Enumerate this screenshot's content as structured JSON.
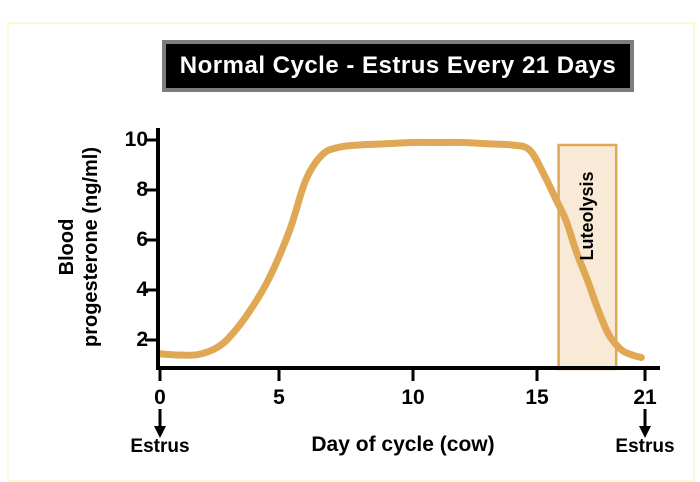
{
  "banner": {
    "title": "Normal Cycle - Estrus Every 21 Days"
  },
  "colors": {
    "curve": "#E0A754",
    "region_fill": "#F9EAD7",
    "region_border": "#E0A754",
    "axis": "#000000",
    "banner_bg": "#000000",
    "banner_border": "#7d7d7d",
    "banner_text": "#ffffff",
    "frame": "#FAFAD2"
  },
  "chart_data": {
    "type": "line",
    "title": "Normal Cycle - Estrus Every 21 Days",
    "xlabel": "Day of cycle (cow)",
    "ylabel": "Blood progesterone (ng/ml)",
    "ylabel_lines": [
      "Blood",
      "progesterone (ng/ml)"
    ],
    "xlim": [
      0,
      21.6
    ],
    "ylim": [
      0.9,
      10.6
    ],
    "xticks": [
      "0",
      "5",
      "10",
      "15",
      "21"
    ],
    "xtick_values": [
      0,
      5,
      10,
      15,
      21
    ],
    "yticks": [
      "2",
      "4",
      "6",
      "8",
      "10"
    ],
    "ytick_values": [
      2,
      4,
      6,
      8,
      10
    ],
    "grid": false,
    "legend": "none",
    "series": [
      {
        "name": "Blood progesterone (ng/ml)",
        "points": [
          [
            0,
            1.45
          ],
          [
            0.8,
            1.4
          ],
          [
            1.6,
            1.42
          ],
          [
            2.4,
            1.7
          ],
          [
            3,
            2.2
          ],
          [
            3.8,
            3.2
          ],
          [
            4.6,
            4.5
          ],
          [
            5.4,
            6.4
          ],
          [
            6,
            8.4
          ],
          [
            6.6,
            9.4
          ],
          [
            7.2,
            9.7
          ],
          [
            8,
            9.8
          ],
          [
            9,
            9.85
          ],
          [
            10,
            9.9
          ],
          [
            11,
            9.9
          ],
          [
            12,
            9.9
          ],
          [
            13,
            9.85
          ],
          [
            14,
            9.8
          ],
          [
            14.7,
            9.6
          ],
          [
            15.4,
            8.6
          ],
          [
            16,
            7.7
          ],
          [
            16.6,
            6.8
          ],
          [
            17.2,
            5.5
          ],
          [
            17.8,
            4.4
          ],
          [
            18.4,
            3.2
          ],
          [
            19,
            2.2
          ],
          [
            19.7,
            1.6
          ],
          [
            20.3,
            1.4
          ],
          [
            20.8,
            1.3
          ]
        ]
      }
    ],
    "region": {
      "label": "Luteolysis",
      "x_start": 16.2,
      "x_end": 19.4,
      "y_top": 9.8
    },
    "annotations": [
      {
        "label": "Estrus",
        "x": 0,
        "arrow": "down"
      },
      {
        "label": "Estrus",
        "x": 21,
        "arrow": "down"
      }
    ]
  }
}
